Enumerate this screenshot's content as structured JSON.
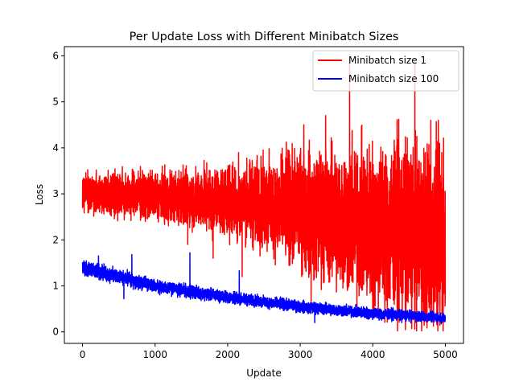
{
  "chart_data": {
    "type": "line",
    "title": "Per Update Loss with Different Minibatch Sizes",
    "xlabel": "Update",
    "ylabel": "Loss",
    "xlim": [
      -250,
      5250
    ],
    "ylim": [
      -0.25,
      6.2
    ],
    "xticks": [
      0,
      1000,
      2000,
      3000,
      4000,
      5000
    ],
    "xtick_labels": [
      "0",
      "1000",
      "2000",
      "3000",
      "4000",
      "5000"
    ],
    "yticks": [
      0,
      1,
      2,
      3,
      4,
      5,
      6
    ],
    "ytick_labels": [
      "0",
      "1",
      "2",
      "3",
      "4",
      "5",
      "6"
    ],
    "grid": false,
    "legend_location": "upper right",
    "num_updates": 5000,
    "series": [
      {
        "name": "Minibatch size 1",
        "color": "#ff0000",
        "trend_x": [
          0,
          1000,
          2000,
          3000,
          4000,
          5000
        ],
        "trend_mean": [
          3.05,
          2.95,
          2.85,
          2.65,
          2.3,
          2.0
        ],
        "trend_spread": [
          0.2,
          0.25,
          0.35,
          0.6,
          0.85,
          1.0
        ],
        "spikes": [
          {
            "x": 3350,
            "y": 4.7
          },
          {
            "x": 3680,
            "y": 5.9
          },
          {
            "x": 4450,
            "y": 5.8
          },
          {
            "x": 4580,
            "y": 5.9
          },
          {
            "x": 4800,
            "y": 4.6
          },
          {
            "x": 4950,
            "y": 3.9
          },
          {
            "x": 3050,
            "y": 4.5
          },
          {
            "x": 2150,
            "y": 3.9
          }
        ],
        "dips": [
          {
            "x": 1450,
            "y": 1.9
          },
          {
            "x": 1800,
            "y": 1.6
          },
          {
            "x": 2200,
            "y": 1.2
          },
          {
            "x": 3150,
            "y": 0.5
          },
          {
            "x": 4000,
            "y": 0.5
          },
          {
            "x": 4450,
            "y": 0.05
          },
          {
            "x": 4600,
            "y": 0.3
          },
          {
            "x": 4960,
            "y": 0.2
          }
        ]
      },
      {
        "name": "Minibatch size 100",
        "color": "#0000ff",
        "trend_x": [
          0,
          1000,
          2000,
          3000,
          4000,
          5000
        ],
        "trend_mean": [
          1.4,
          1.0,
          0.75,
          0.55,
          0.4,
          0.3
        ],
        "trend_spread": [
          0.08,
          0.07,
          0.06,
          0.06,
          0.06,
          0.05
        ],
        "spikes": [
          {
            "x": 220,
            "y": 1.65
          },
          {
            "x": 680,
            "y": 1.68
          },
          {
            "x": 1480,
            "y": 1.72
          },
          {
            "x": 2160,
            "y": 1.33
          }
        ],
        "dips": [
          {
            "x": 570,
            "y": 0.72
          },
          {
            "x": 3200,
            "y": 0.2
          },
          {
            "x": 4400,
            "y": 0.2
          }
        ]
      }
    ]
  }
}
